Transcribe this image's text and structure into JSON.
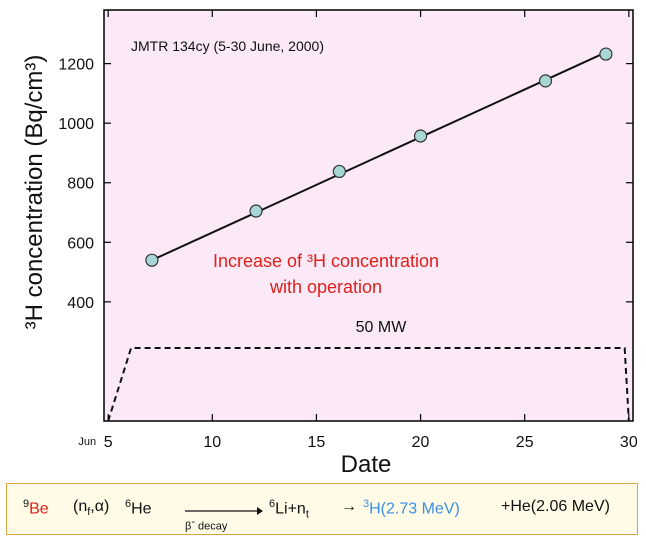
{
  "chart_data": {
    "type": "line",
    "annotation_title": "JMTR 134cy (5-30 June, 2000)",
    "annotation_increase_line1": "Increase of ³H concentration",
    "annotation_increase_line2": "with operation",
    "power_label": "50 MW",
    "xlabel": "Date",
    "ylabel": "³H concentration (Bq/cm³)",
    "x_ticks": [
      5,
      10,
      15,
      20,
      25,
      30
    ],
    "x_tick_labels": [
      "5",
      "10",
      "15",
      "20",
      "25",
      "30"
    ],
    "x_first_tick_prefix": "Jun",
    "y_ticks": [
      400,
      600,
      800,
      1000,
      1200
    ],
    "y_tick_labels": [
      "400",
      "600",
      "800",
      "1000",
      "1200"
    ],
    "xlim": [
      4.8,
      30.2
    ],
    "ylim": [
      0,
      1380
    ],
    "grid": false,
    "background_color": "#fbe9f8",
    "series": [
      {
        "x": [
          7.1,
          12.1,
          16.1,
          20.0,
          26.0,
          28.9
        ],
        "y": [
          540,
          705,
          838,
          957,
          1142,
          1232
        ],
        "marker_color": "#a7d7d5",
        "fit_line": {
          "x": [
            7.1,
            28.9
          ],
          "y": [
            540,
            1238
          ]
        }
      }
    ],
    "power_profile": {
      "x": [
        5.0,
        6.1,
        29.8,
        30.0
      ],
      "level": 245,
      "baseline": 0
    }
  },
  "reaction": {
    "be_mass": "9",
    "be_symbol": "Be",
    "projectile": "(n",
    "projectile_sub": "f",
    "projectile_end": ",α)",
    "he6_mass": "6",
    "he6_symbol": "He",
    "arrow_caption_beta": "β",
    "arrow_caption_minus": "-",
    "arrow_caption_text": " decay",
    "li_mass": "6",
    "li_plus": "Li+n",
    "li_plus_sub": "t",
    "arrow2": "→",
    "h3_mass": "3",
    "h3_text": "H(2.73 MeV)",
    "he_final": "+He(2.06 MeV)"
  }
}
